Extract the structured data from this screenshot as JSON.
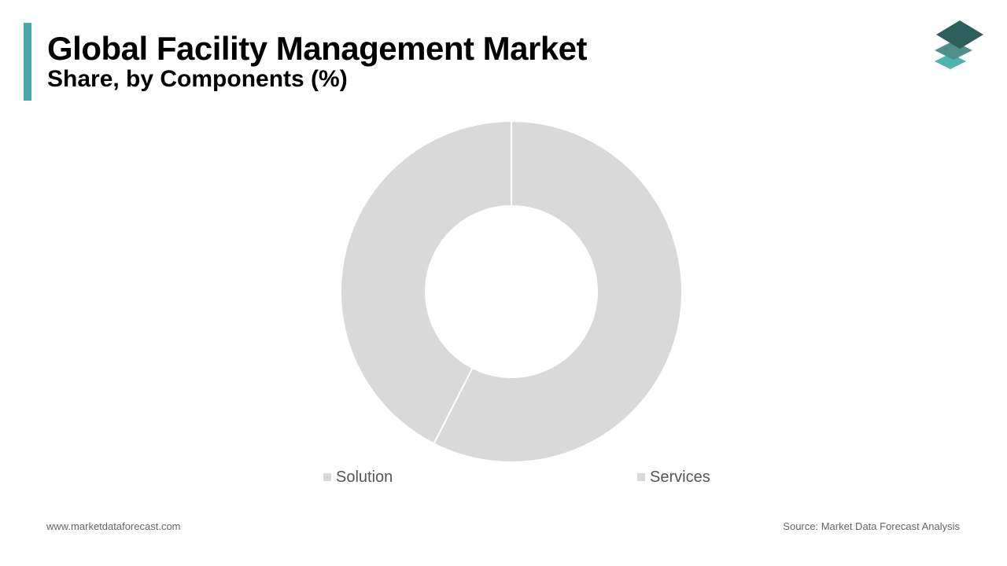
{
  "header": {
    "title": "Global Facility Management Market",
    "subtitle": "Share, by Components (%)",
    "accent_color": "#4aa8a8"
  },
  "logo": {
    "icon": "stacked-layers-icon",
    "colors": [
      "#2e5f5a",
      "#4f8f88",
      "#4fb3b0"
    ]
  },
  "chart_data": {
    "type": "pie",
    "donut": true,
    "categories": [
      "Solution",
      "Services"
    ],
    "values": [
      42.5,
      57.5
    ],
    "colors": [
      "#d9d9d9",
      "#d9d9d9"
    ],
    "legend_position": "bottom"
  },
  "footer": {
    "website": "www.marketdataforecast.com",
    "source": "Source: Market Data Forecast Analysis"
  }
}
